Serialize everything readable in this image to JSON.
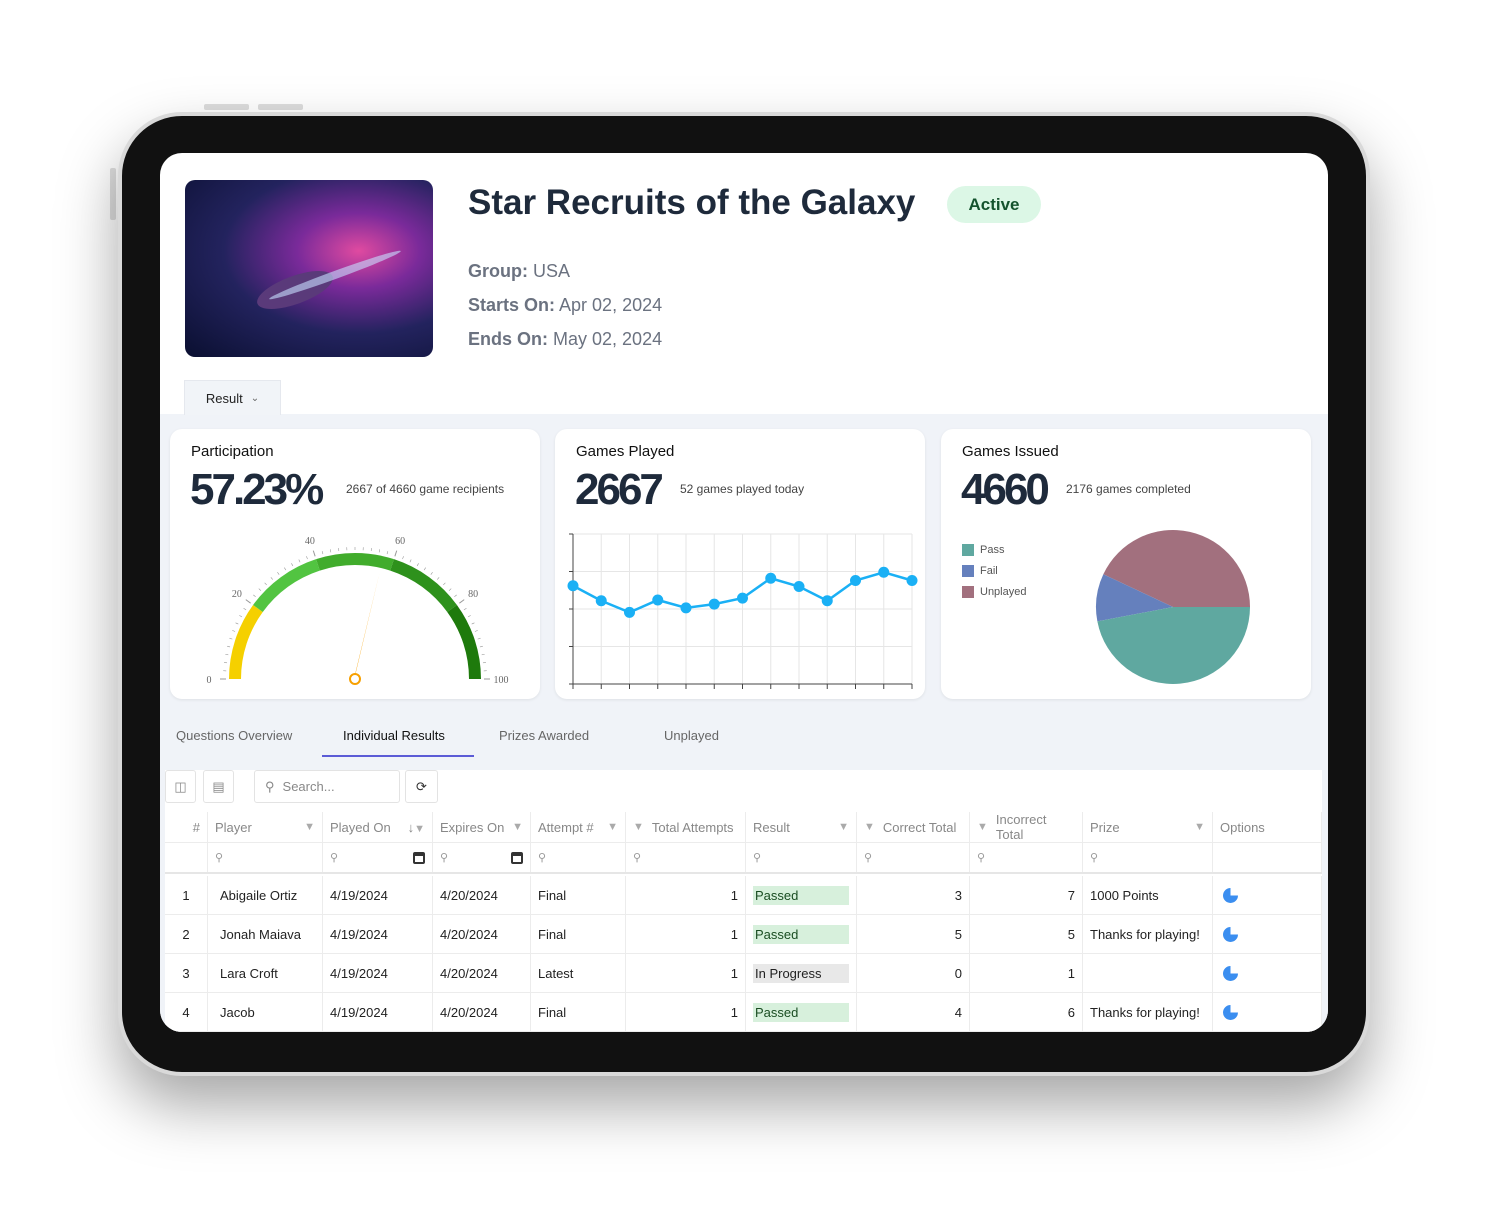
{
  "header": {
    "title": "Star Recruits of the Galaxy",
    "status": "Active",
    "group_label": "Group:",
    "group": "USA",
    "starts_label": "Starts On:",
    "starts": "Apr 02, 2024",
    "ends_label": "Ends On:",
    "ends": "May 02, 2024"
  },
  "view_selector": {
    "label": "Result"
  },
  "cards": {
    "participation": {
      "title": "Participation",
      "value": "57.23%",
      "sub": "2667 of 4660 game recipients"
    },
    "played": {
      "title": "Games Played",
      "value": "2667",
      "sub": "52 games played today"
    },
    "issued": {
      "title": "Games Issued",
      "value": "4660",
      "sub": "2176 games completed"
    }
  },
  "chart_data": [
    {
      "type": "gauge",
      "value": 57.23,
      "range": [
        0,
        100
      ],
      "tick_labels": [
        "0",
        "20",
        "40",
        "60",
        "80",
        "100"
      ],
      "bands": [
        {
          "from": 0,
          "to": 20,
          "color": "#f5d000"
        },
        {
          "from": 20,
          "to": 40,
          "color": "#52c441"
        },
        {
          "from": 40,
          "to": 60,
          "color": "#41ac2c"
        },
        {
          "from": 60,
          "to": 80,
          "color": "#2e911c"
        },
        {
          "from": 80,
          "to": 100,
          "color": "#1e7a0c"
        }
      ],
      "needle_color": "#f7a000"
    },
    {
      "type": "line",
      "values": [
        2.62,
        2.22,
        1.91,
        2.24,
        2.03,
        2.13,
        2.29,
        2.82,
        2.6,
        2.22,
        2.76,
        2.98,
        2.76
      ],
      "ylim": [
        0,
        4
      ],
      "grid": true,
      "color": "#1ab0f5"
    },
    {
      "type": "pie",
      "legend_position": "left",
      "slices": [
        {
          "name": "Pass",
          "value": 47,
          "color": "#5fa8a0"
        },
        {
          "name": "Fail",
          "value": 10,
          "color": "#6580bd"
        },
        {
          "name": "Unplayed",
          "value": 43,
          "color": "#a2707e"
        }
      ]
    }
  ],
  "tabs": [
    "Questions Overview",
    "Individual Results",
    "Prizes Awarded",
    "Unplayed"
  ],
  "toolbar": {
    "search_placeholder": "Search..."
  },
  "table": {
    "columns": [
      "#",
      "Player",
      "Played On",
      "Expires On",
      "Attempt #",
      "Total Attempts",
      "Result",
      "Correct Total",
      "Incorrect Total",
      "Prize",
      "Options"
    ],
    "rows": [
      [
        "1",
        "Abigaile Ortiz",
        "4/19/2024",
        "4/20/2024",
        "Final",
        "1",
        "Passed",
        "3",
        "7",
        "1000 Points"
      ],
      [
        "2",
        "Jonah Maiava",
        "4/19/2024",
        "4/20/2024",
        "Final",
        "1",
        "Passed",
        "5",
        "5",
        "Thanks for playing!"
      ],
      [
        "3",
        "Lara Croft",
        "4/19/2024",
        "4/20/2024",
        "Latest",
        "1",
        "In Progress",
        "0",
        "1",
        ""
      ],
      [
        "4",
        "Jacob",
        "4/19/2024",
        "4/20/2024",
        "Final",
        "1",
        "Passed",
        "4",
        "6",
        "Thanks for playing!"
      ]
    ]
  }
}
